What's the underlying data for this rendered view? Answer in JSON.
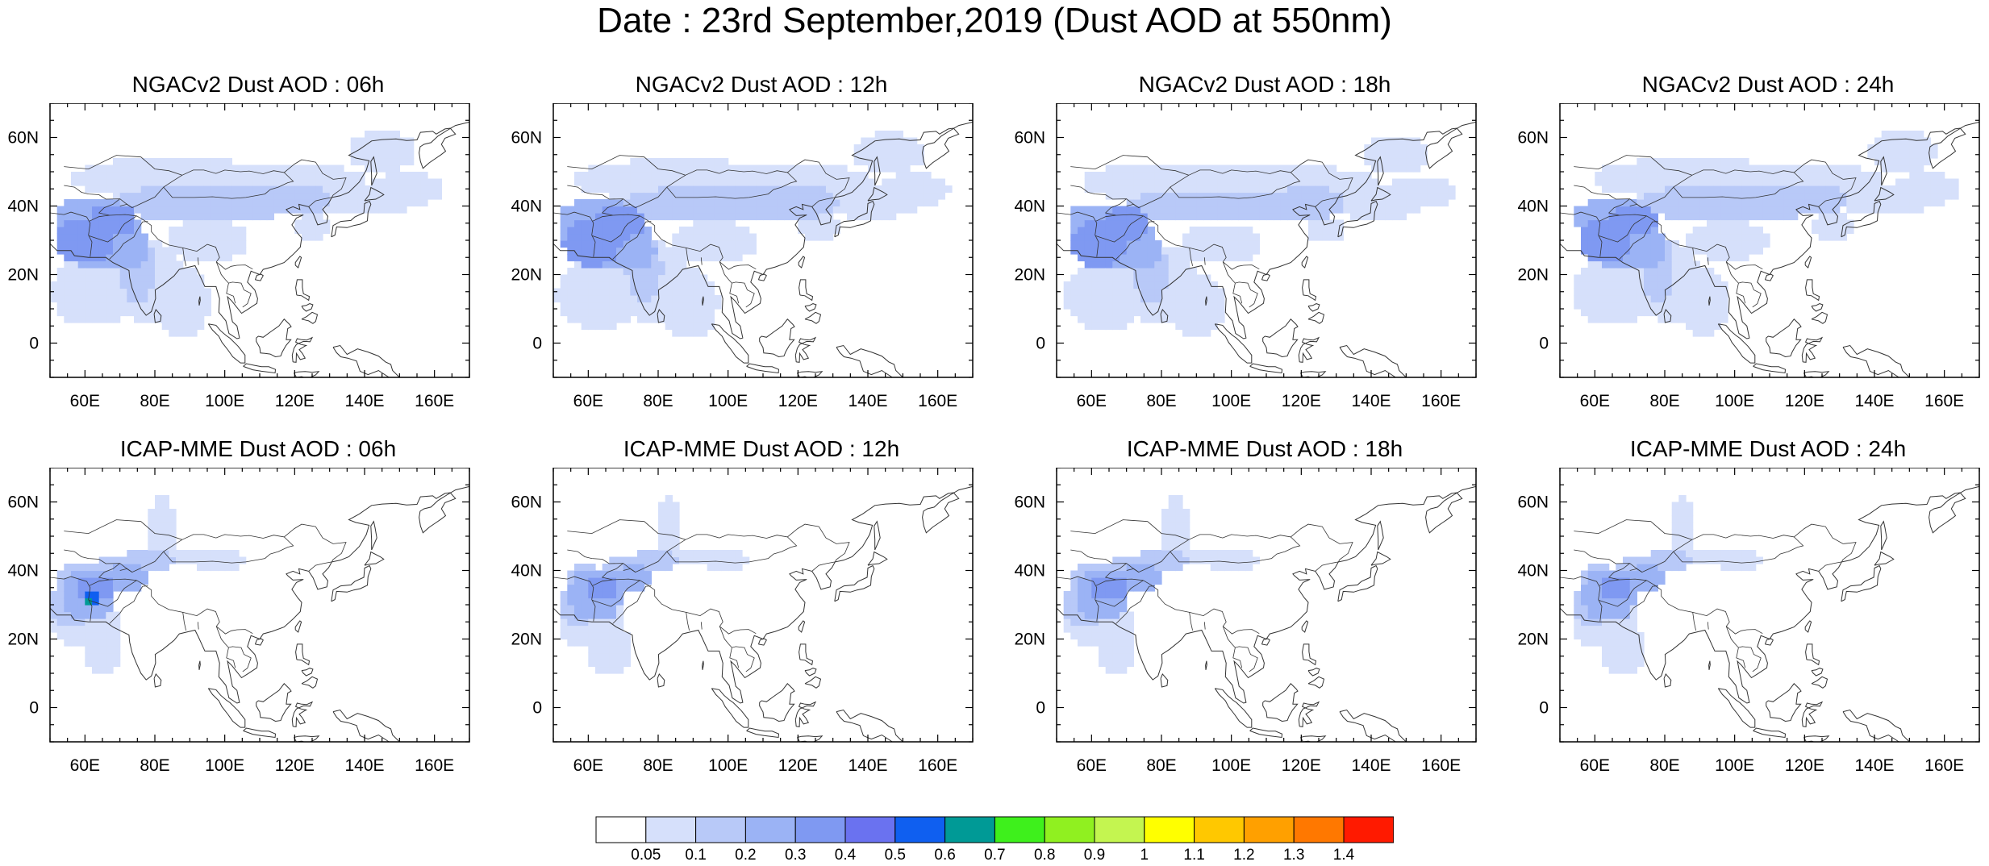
{
  "title": "Date : 23rd September,2019 (Dust AOD at 550nm)",
  "map": {
    "lon_range": [
      50,
      170
    ],
    "lat_range": [
      -10,
      70
    ],
    "x_ticks": [
      "60E",
      "80E",
      "100E",
      "120E",
      "140E",
      "160E"
    ],
    "y_ticks": [
      "60N",
      "40N",
      "20N",
      "0"
    ],
    "x_tick_values": [
      60,
      80,
      100,
      120,
      140,
      160
    ],
    "y_tick_values": [
      60,
      40,
      20,
      0
    ]
  },
  "panels": [
    {
      "title": "NGACv2 Dust AOD : 06h",
      "model": "NGACv2",
      "hour": "06h"
    },
    {
      "title": "NGACv2 Dust AOD : 12h",
      "model": "NGACv2",
      "hour": "12h"
    },
    {
      "title": "NGACv2 Dust AOD : 18h",
      "model": "NGACv2",
      "hour": "18h"
    },
    {
      "title": "NGACv2 Dust AOD : 24h",
      "model": "NGACv2",
      "hour": "24h"
    },
    {
      "title": "ICAP-MME Dust AOD : 06h",
      "model": "ICAP-MME",
      "hour": "06h"
    },
    {
      "title": "ICAP-MME Dust AOD : 12h",
      "model": "ICAP-MME",
      "hour": "12h"
    },
    {
      "title": "ICAP-MME Dust AOD : 18h",
      "model": "ICAP-MME",
      "hour": "18h"
    },
    {
      "title": "ICAP-MME Dust AOD : 24h",
      "model": "ICAP-MME",
      "hour": "24h"
    }
  ],
  "colorbar": {
    "labels": [
      "0.05",
      "0.1",
      "0.2",
      "0.3",
      "0.4",
      "0.5",
      "0.6",
      "0.7",
      "0.8",
      "0.9",
      "1",
      "1.1",
      "1.2",
      "1.3",
      "1.4"
    ],
    "colors": [
      "#ffffff",
      "#d6e0fb",
      "#b8c9f8",
      "#9bb3f5",
      "#7f99f2",
      "#6a72f0",
      "#0f5ff0",
      "#009a96",
      "#3ef01c",
      "#90f020",
      "#c4f550",
      "#ffff00",
      "#ffc800",
      "#ffa000",
      "#ff7800",
      "#ff1a00"
    ]
  }
}
